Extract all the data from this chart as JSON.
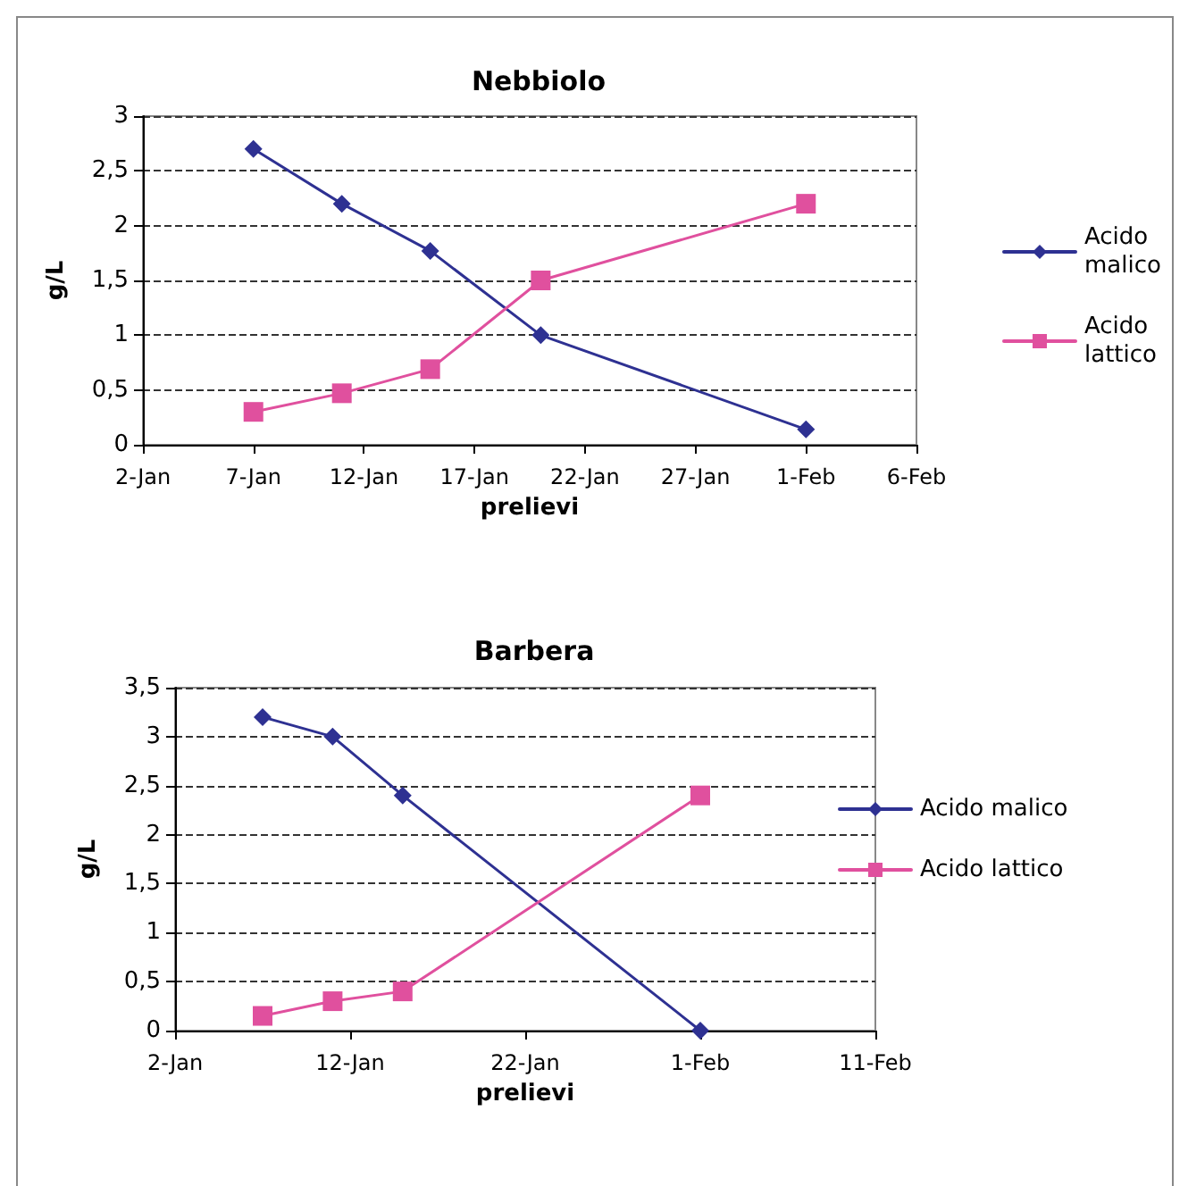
{
  "chart_data": [
    {
      "type": "line",
      "title": "Nebbiolo",
      "xlabel": "prelievi",
      "ylabel": "g/L",
      "x": [
        "--01-07",
        "--01-11",
        "--01-15",
        "--01-20",
        "--02-01"
      ],
      "series": [
        {
          "name": "Acido malico",
          "color": "#2e3192",
          "marker": "diamond",
          "values": [
            2.7,
            2.2,
            1.77,
            1.0,
            0.14
          ]
        },
        {
          "name": "Acido lattico",
          "color": "#e0509e",
          "marker": "square",
          "values": [
            0.3,
            0.47,
            0.69,
            1.5,
            2.2
          ]
        }
      ],
      "xlim": [
        "--01-02",
        "--02-06"
      ],
      "xticks": [
        {
          "value": "--01-02",
          "label": "2-Jan"
        },
        {
          "value": "--01-07",
          "label": "7-Jan"
        },
        {
          "value": "--01-12",
          "label": "12-Jan"
        },
        {
          "value": "--01-17",
          "label": "17-Jan"
        },
        {
          "value": "--01-22",
          "label": "22-Jan"
        },
        {
          "value": "--01-27",
          "label": "27-Jan"
        },
        {
          "value": "--02-01",
          "label": "1-Feb"
        },
        {
          "value": "--02-06",
          "label": "6-Feb"
        }
      ],
      "ylim": [
        0,
        3
      ],
      "yticks": [
        0,
        {
          "value": 0.5,
          "label": "0,5"
        },
        1,
        {
          "value": 1.5,
          "label": "1,5"
        },
        2,
        {
          "value": 2.5,
          "label": "2,5"
        },
        3
      ],
      "grid": "y",
      "legend": "right",
      "line_style": "solid"
    },
    {
      "type": "line",
      "title": "Barbera",
      "xlabel": "prelievi",
      "ylabel": "g/L",
      "x": [
        "--01-07",
        "--01-11",
        "--01-15",
        "--02-01"
      ],
      "series": [
        {
          "name": "Acido malico",
          "color": "#2e3192",
          "marker": "diamond",
          "values": [
            3.2,
            3.0,
            2.4,
            0.0
          ]
        },
        {
          "name": "Acido lattico",
          "color": "#e0509e",
          "marker": "square",
          "values": [
            0.15,
            0.3,
            0.4,
            2.4
          ]
        }
      ],
      "xlim": [
        "--01-02",
        "--02-11"
      ],
      "xticks": [
        {
          "value": "--01-02",
          "label": "2-Jan"
        },
        {
          "value": "--01-12",
          "label": "12-Jan"
        },
        {
          "value": "--01-22",
          "label": "22-Jan"
        },
        {
          "value": "--02-01",
          "label": "1-Feb"
        },
        {
          "value": "--02-11",
          "label": "11-Feb"
        }
      ],
      "ylim": [
        0,
        3.5
      ],
      "yticks": [
        0,
        {
          "value": 0.5,
          "label": "0,5"
        },
        1,
        {
          "value": 1.5,
          "label": "1,5"
        },
        2,
        {
          "value": 2.5,
          "label": "2,5"
        },
        3,
        {
          "value": 3.5,
          "label": "3,5"
        }
      ],
      "grid": "y",
      "legend": "right",
      "line_style": "solid"
    }
  ]
}
